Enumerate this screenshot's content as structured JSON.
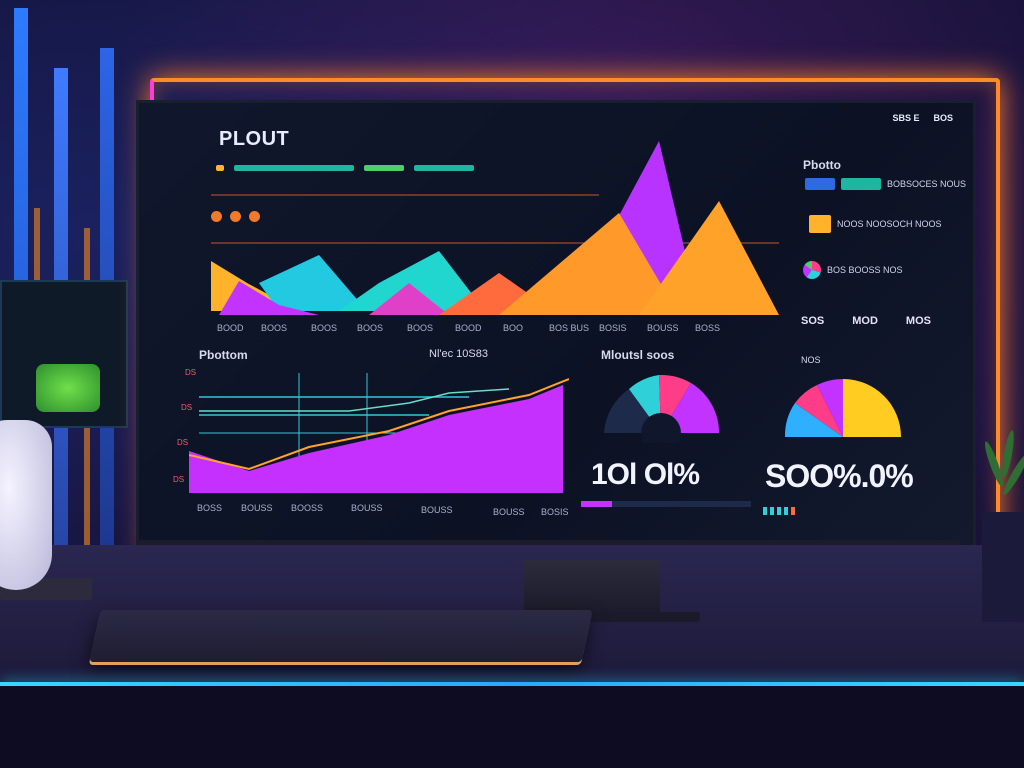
{
  "dashboard": {
    "title": "PLOUT",
    "top_right": [
      "SBS E",
      "BOS"
    ],
    "top_chart_x_labels": [
      "BOOD",
      "BOOS",
      "BOOS",
      "BOOS",
      "BOOS",
      "BOOD",
      "BOO",
      "BOS BUS",
      "BOSIS",
      "BOUSS",
      "BOSS"
    ],
    "line_panel": {
      "title": "Pbottom",
      "subtitle": "Nl'ec 10S83",
      "y_labels": [
        "DS",
        "DS",
        "DS",
        "DS"
      ],
      "x_labels": [
        "BOSS",
        "BOUSS",
        "BOOSS",
        "BOUSS",
        "BOUSS",
        "BOUSS",
        "BOSIS"
      ]
    },
    "donut_panel": {
      "title": "Mloutsl soos",
      "value": "1Ol Ol%"
    },
    "right_panel": {
      "title": "Pbotto",
      "rows": [
        "BOBSOCES NOUS",
        "NOOS NOOSOCH NOOS",
        "BOS BOOSS NOS"
      ],
      "stats": [
        "SOS",
        "MOD",
        "MOS"
      ],
      "pie_caption": "NOS",
      "value": "SOO%.0%"
    },
    "colors": {
      "accent_orange": "#ff8a2a",
      "accent_magenta": "#ff3cd8",
      "accent_cyan": "#2fd0ff",
      "series_purple": "#b633ff",
      "series_teal": "#21d0d0",
      "series_yellow": "#ffcc22"
    }
  }
}
